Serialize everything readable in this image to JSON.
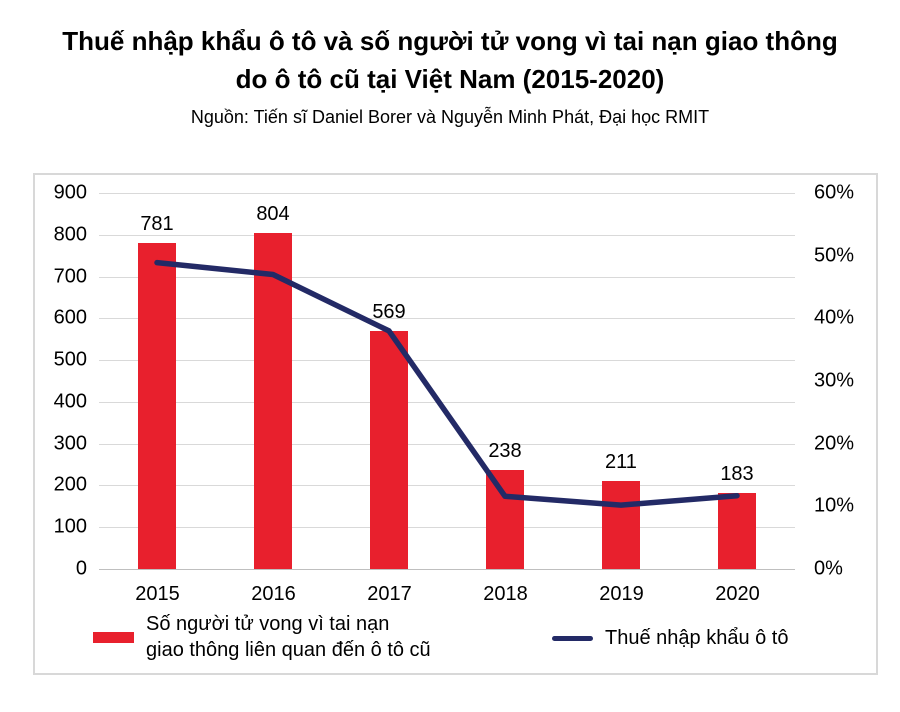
{
  "header": {
    "title_line1": "Thuế nhập khẩu ô tô và số người tử vong vì tai nạn giao thông",
    "title_line2": "do ô tô cũ tại Việt Nam (2015-2020)",
    "source": "Nguồn: Tiến sĩ Daniel Borer và Nguyễn Minh Phát, Đại học RMIT"
  },
  "chart_data": {
    "type": "bar",
    "subtype": "combo-bar-line-dual-axis",
    "categories": [
      "2015",
      "2016",
      "2017",
      "2018",
      "2019",
      "2020"
    ],
    "series": [
      {
        "name": "Số người tử vong vì tai nạn giao thông liên quan đến ô tô cũ",
        "type": "bar",
        "axis": "left",
        "color": "#e8202d",
        "values": [
          781,
          804,
          569,
          238,
          211,
          183
        ],
        "data_labels": [
          "781",
          "804",
          "569",
          "238",
          "211",
          "183"
        ]
      },
      {
        "name": "Thuế nhập khẩu ô tô",
        "type": "line",
        "axis": "right",
        "color": "#232a66",
        "values": [
          48.9,
          47.0,
          38.0,
          11.6,
          10.2,
          11.7
        ]
      }
    ],
    "left_axis": {
      "min": 0,
      "max": 900,
      "step": 100,
      "tick_labels_top_down": [
        "900",
        "800",
        "700",
        "600",
        "500",
        "400",
        "300",
        "200",
        "100",
        "0"
      ]
    },
    "right_axis": {
      "min": 0,
      "max": 60,
      "step": 10,
      "tick_labels_top_down": [
        "60%",
        "50%",
        "40%",
        "30%",
        "20%",
        "10%",
        "0%"
      ]
    },
    "grid": "horizontal",
    "legend_position": "bottom"
  },
  "legend": {
    "bar_label_line1": "Số người tử vong vì tai nạn",
    "bar_label_line2": "giao thông liên quan đến ô tô cũ",
    "line_label": "Thuế nhập khẩu ô tô"
  },
  "colors": {
    "bar": "#e8202d",
    "line": "#232a66",
    "gridline": "#d9d9d9",
    "frame_border": "#d8d8d8",
    "text": "#000000"
  }
}
